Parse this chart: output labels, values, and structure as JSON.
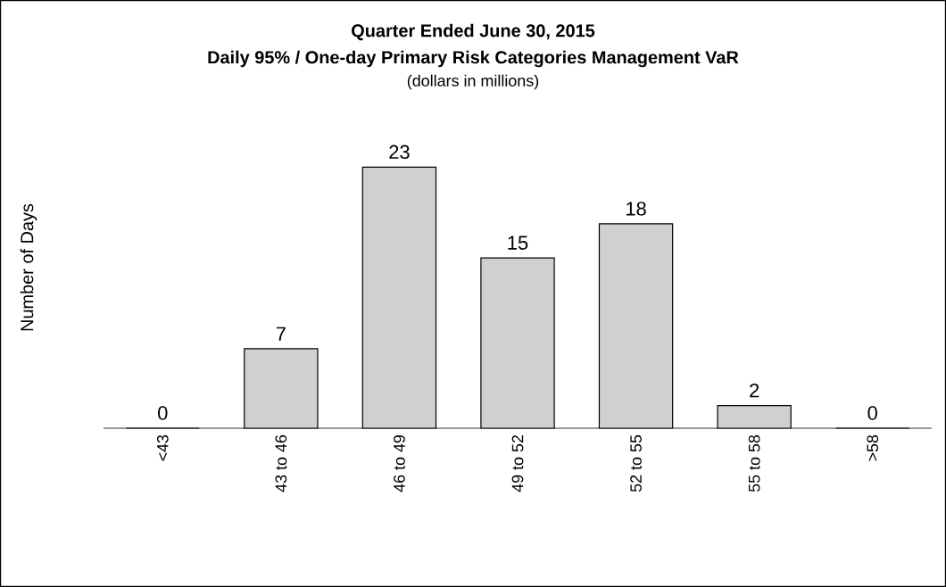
{
  "chart_data": {
    "type": "bar",
    "title": "Quarter Ended June 30, 2015",
    "subtitle": "Daily 95% / One-day Primary Risk Categories Management VaR",
    "annotations": [
      "(dollars in millions)"
    ],
    "ylabel": "Number of Days",
    "categories": [
      "<43",
      "43 to 46",
      "46 to 49",
      "49 to 52",
      "52 to 55",
      "55 to 58",
      ">58"
    ],
    "values": [
      0,
      7,
      23,
      15,
      18,
      2,
      0
    ],
    "color": "#d0d0d3",
    "data_labels": true
  }
}
